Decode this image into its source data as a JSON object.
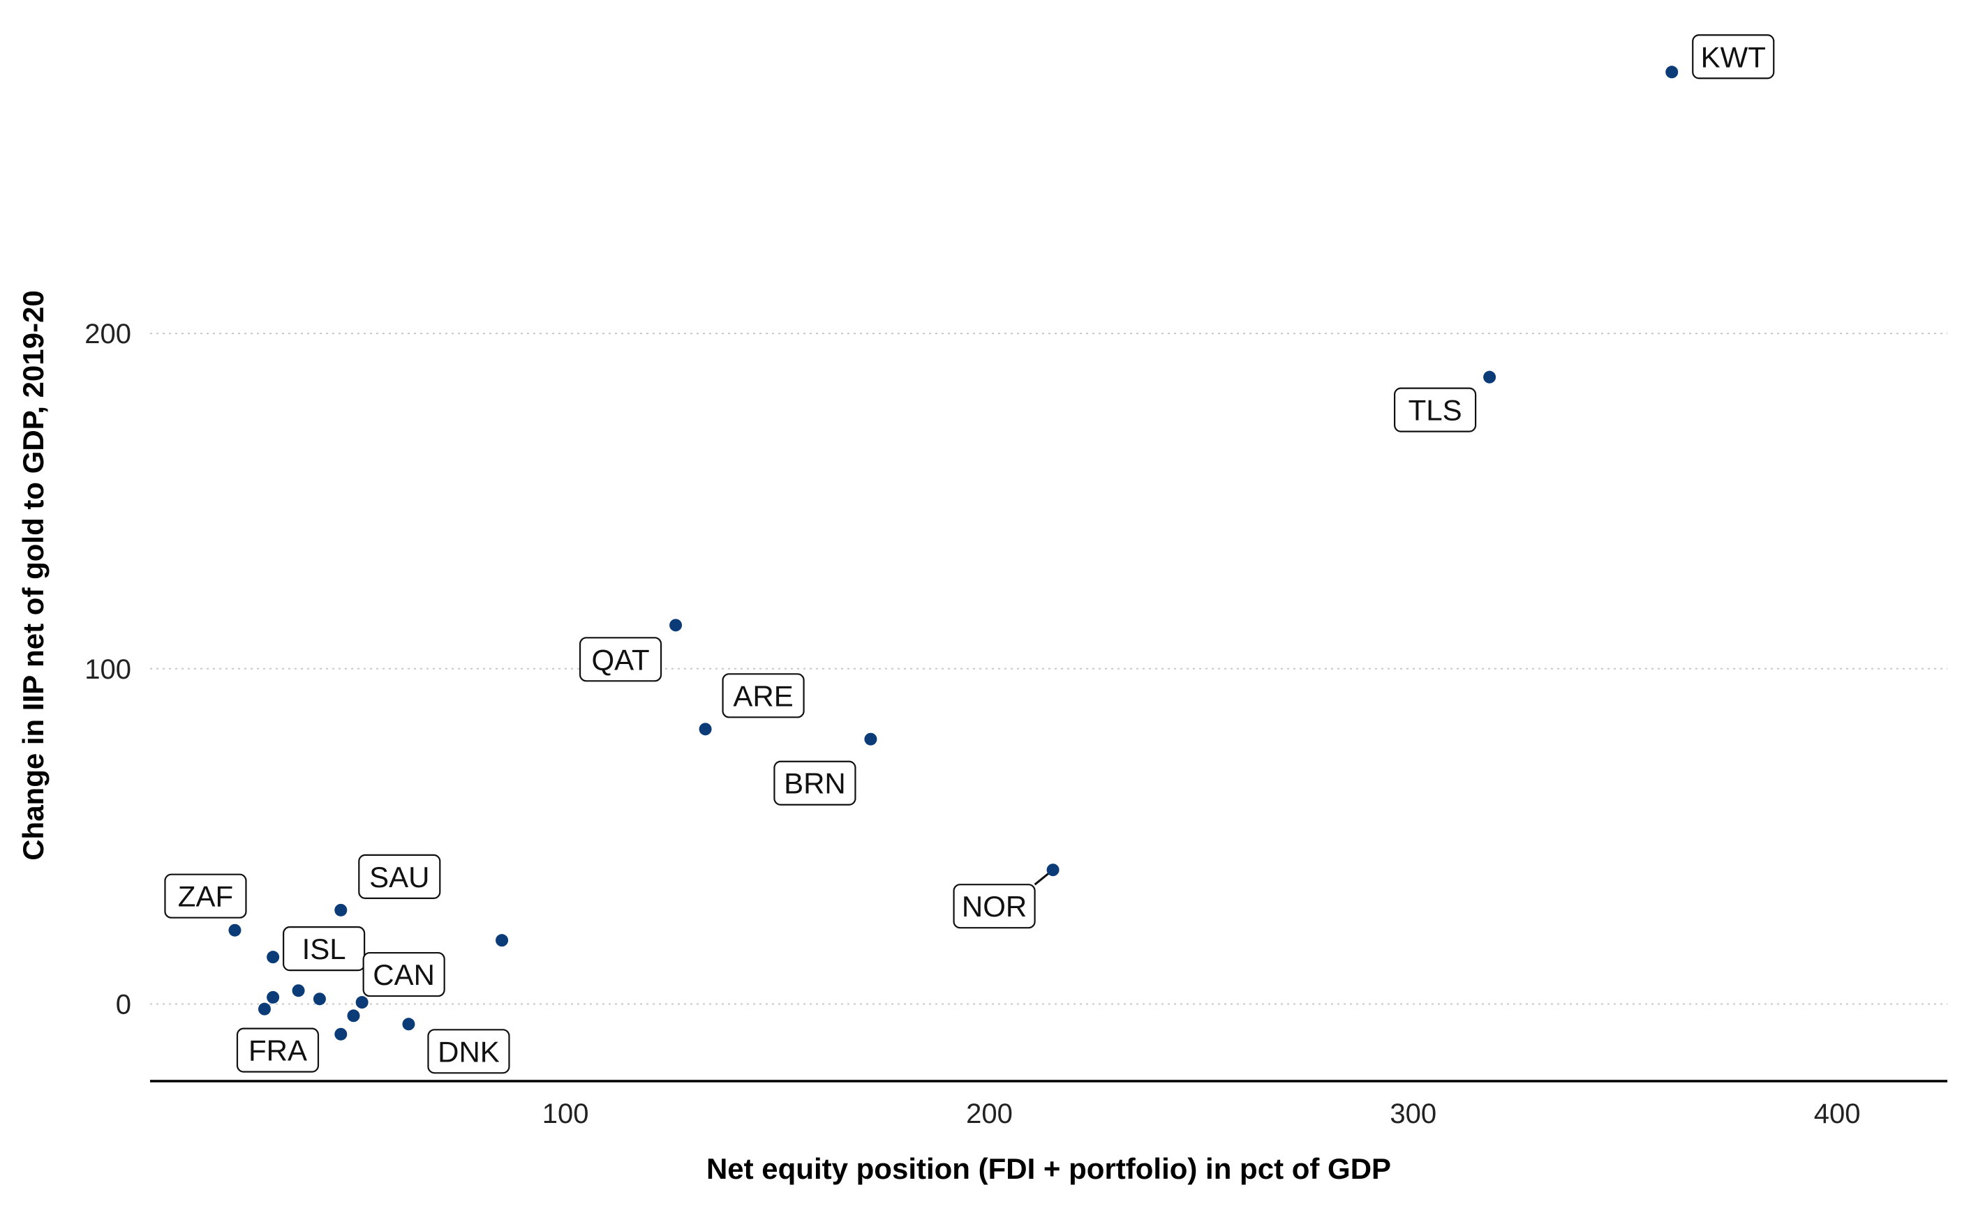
{
  "chart_data": {
    "type": "scatter",
    "title": "",
    "xlabel": "Net equity position (FDI + portfolio) in pct of GDP",
    "ylabel": "Change in IIP net of gold to GDP, 2019-20",
    "xlim": [
      2,
      426
    ],
    "ylim": [
      -23,
      287
    ],
    "x_ticks": [
      100,
      200,
      300,
      400
    ],
    "y_ticks": [
      0,
      100,
      200
    ],
    "grid": {
      "horizontal": true,
      "vertical": false,
      "style": "dotted"
    },
    "legend": "none",
    "point_color": "#0b3c78",
    "points": [
      {
        "label": "KWT",
        "x": 361,
        "y": 278
      },
      {
        "label": "TLS",
        "x": 318,
        "y": 187
      },
      {
        "label": "QAT",
        "x": 126,
        "y": 113
      },
      {
        "label": "ARE",
        "x": 133,
        "y": 82
      },
      {
        "label": "BRN",
        "x": 172,
        "y": 79
      },
      {
        "label": "NOR",
        "x": 215,
        "y": 40
      },
      {
        "label": "SAU",
        "x": 47,
        "y": 28
      },
      {
        "label": "ZAF",
        "x": 22,
        "y": 22
      },
      {
        "label": "",
        "x": 85,
        "y": 19
      },
      {
        "label": "ISL",
        "x": 31,
        "y": 14
      },
      {
        "label": "",
        "x": 37,
        "y": 4
      },
      {
        "label": "",
        "x": 31,
        "y": 2
      },
      {
        "label": "",
        "x": 42,
        "y": 1.5
      },
      {
        "label": "CAN",
        "x": 52,
        "y": 0.5
      },
      {
        "label": "FRA",
        "x": 29,
        "y": -1.5
      },
      {
        "label": "",
        "x": 50,
        "y": -3.5
      },
      {
        "label": "DNK",
        "x": 63,
        "y": -6
      },
      {
        "label": "",
        "x": 47,
        "y": -9
      }
    ]
  }
}
